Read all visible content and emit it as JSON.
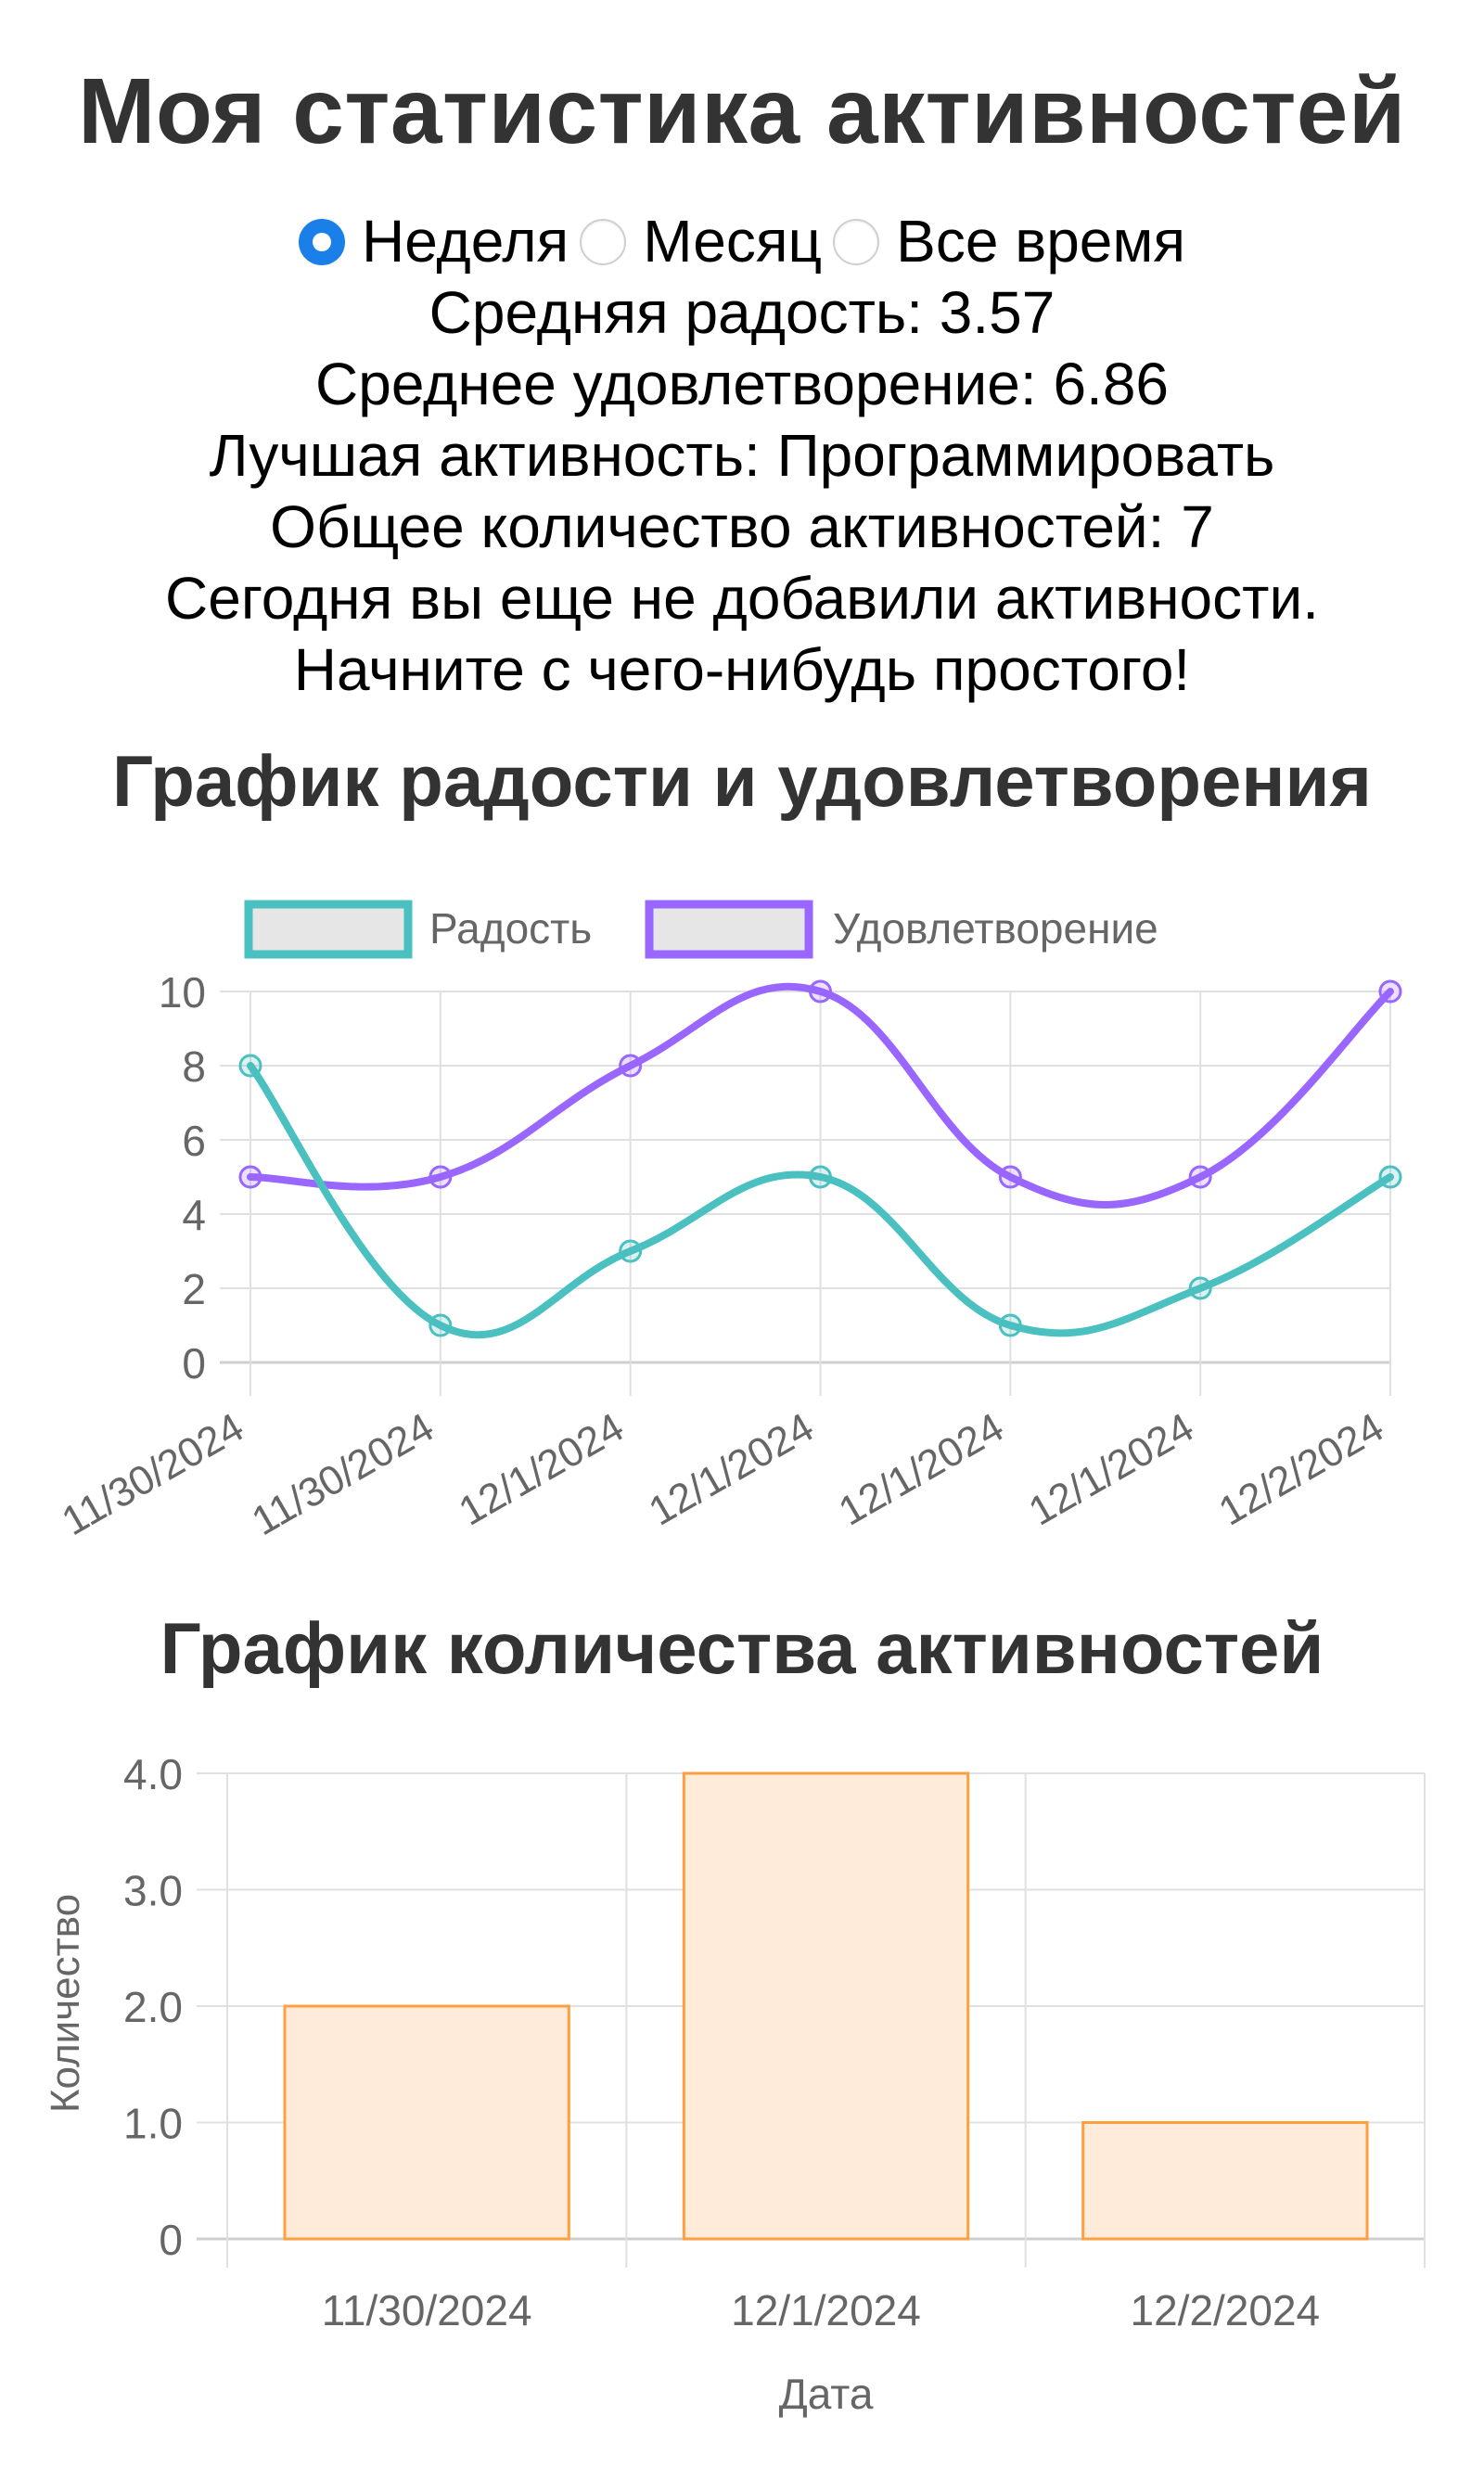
{
  "page": {
    "title": "Моя статистика активностей"
  },
  "period": {
    "options": [
      {
        "label": "Неделя",
        "checked": true
      },
      {
        "label": "Месяц",
        "checked": false
      },
      {
        "label": "Все время",
        "checked": false
      }
    ]
  },
  "stats": {
    "avg_joy": "Средняя радость: 3.57",
    "avg_satisfaction": "Среднее удовлетворение: 6.86",
    "best_activity": "Лучшая активность: Программировать",
    "total_activities": "Общее количество активностей: 7",
    "today_notice_1": "Сегодня вы еще не добавили активности.",
    "today_notice_2": "Начните с чего-нибудь простого!"
  },
  "colors": {
    "joy": "#4BC0C0",
    "satisfaction": "#9966FF",
    "bar_border": "#FF9F40",
    "bar_fill": "#FFEBD9",
    "grid": "#E0E0E0",
    "tick_text": "#666666",
    "radio_checked": "#1A7FE8"
  },
  "chart_data": [
    {
      "type": "line",
      "title": "График радости и удовлетворения",
      "categories": [
        "11/30/2024",
        "11/30/2024",
        "12/1/2024",
        "12/1/2024",
        "12/1/2024",
        "12/1/2024",
        "12/2/2024"
      ],
      "series": [
        {
          "name": "Радость",
          "color": "#4BC0C0",
          "values": [
            8,
            1,
            3,
            5,
            1,
            2,
            5
          ]
        },
        {
          "name": "Удовлетворение",
          "color": "#9966FF",
          "values": [
            5,
            5,
            8,
            10,
            5,
            5,
            10
          ]
        }
      ],
      "yticks": [
        "0",
        "2",
        "4",
        "6",
        "8",
        "10"
      ],
      "ylim": [
        0,
        10
      ],
      "xlabel": "",
      "ylabel": "",
      "grid": true,
      "legend_position": "top",
      "smooth": true
    },
    {
      "type": "bar",
      "title": "График количества активностей",
      "categories": [
        "11/30/2024",
        "12/1/2024",
        "12/2/2024"
      ],
      "values": [
        2,
        4,
        1
      ],
      "yticks": [
        "0",
        "1.0",
        "2.0",
        "3.0",
        "4.0"
      ],
      "ylim": [
        0,
        4
      ],
      "xlabel": "Дата",
      "ylabel": "Количество",
      "grid": true
    }
  ]
}
